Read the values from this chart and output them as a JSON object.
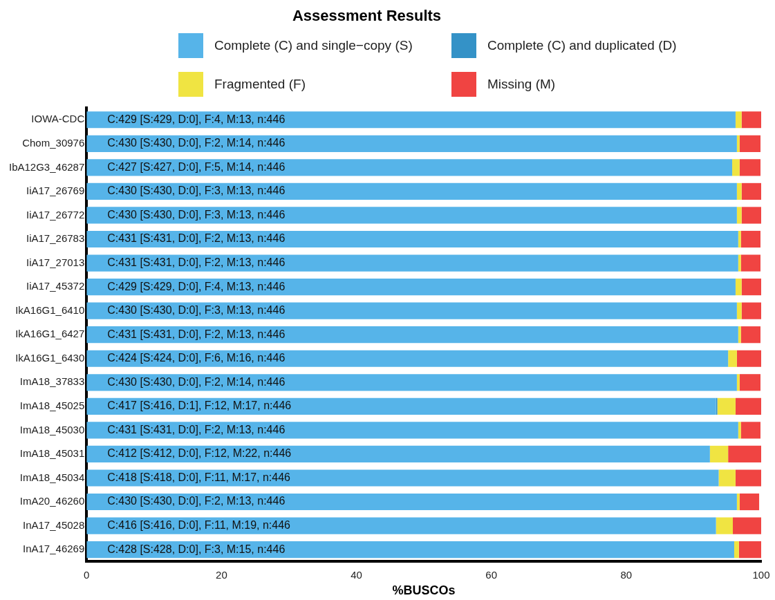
{
  "chart_data": {
    "type": "bar",
    "orientation": "horizontal",
    "stacked": true,
    "title": "Assessment Results",
    "xlabel": "%BUSCOs",
    "legend": "top",
    "grid": false,
    "categories": [
      "IOWA-CDC",
      "Chom_30976",
      "IbA12G3_46287",
      "IiA17_26769",
      "IiA17_26772",
      "IiA17_26783",
      "IiA17_27013",
      "IiA17_45372",
      "IkA16G1_6410",
      "IkA16G1_6427",
      "IkA16G1_6430",
      "ImA18_37833",
      "ImA18_45025",
      "ImA18_45030",
      "ImA18_45031",
      "ImA18_45034",
      "ImA20_46260",
      "InA17_45028",
      "InA17_46269"
    ],
    "xlim": [
      0,
      100
    ],
    "xticks": [
      0,
      20,
      40,
      60,
      80,
      100
    ],
    "series": [
      {
        "name": "Complete (C) and single−copy (S)",
        "color": "#56b4e9",
        "values": [
          96.2,
          96.4,
          95.7,
          96.4,
          96.4,
          96.6,
          96.6,
          96.2,
          96.4,
          96.6,
          95.1,
          96.4,
          93.3,
          96.6,
          92.4,
          93.7,
          96.4,
          93.3,
          96.0
        ],
        "value_labels": [
          "C:429 [S:429, D:0], F:4, M:13, n:446",
          "C:430 [S:430, D:0], F:2, M:14, n:446",
          "C:427 [S:427, D:0], F:5, M:14, n:446",
          "C:430 [S:430, D:0], F:3, M:13, n:446",
          "C:430 [S:430, D:0], F:3, M:13, n:446",
          "C:431 [S:431, D:0], F:2, M:13, n:446",
          "C:431 [S:431, D:0], F:2, M:13, n:446",
          "C:429 [S:429, D:0], F:4, M:13, n:446",
          "C:430 [S:430, D:0], F:3, M:13, n:446",
          "C:431 [S:431, D:0], F:2, M:13, n:446",
          "C:424 [S:424, D:0], F:6, M:16, n:446",
          "C:430 [S:430, D:0], F:2, M:14, n:446",
          "C:417 [S:416, D:1], F:12, M:17, n:446",
          "C:431 [S:431, D:0], F:2, M:13, n:446",
          "C:412 [S:412, D:0], F:12, M:22, n:446",
          "C:418 [S:418, D:0], F:11, M:17, n:446",
          "C:430 [S:430, D:0], F:2, M:13, n:446",
          "C:416 [S:416, D:0], F:11, M:19, n:446",
          "C:428 [S:428, D:0], F:3, M:15, n:446"
        ]
      },
      {
        "name": "Complete (C) and duplicated (D)",
        "color": "#3492c7",
        "values": [
          0,
          0,
          0,
          0,
          0,
          0,
          0,
          0,
          0,
          0,
          0,
          0,
          0.2,
          0,
          0,
          0,
          0,
          0,
          0
        ]
      },
      {
        "name": "Fragmented (F)",
        "color": "#f0e442",
        "values": [
          0.9,
          0.4,
          1.1,
          0.7,
          0.7,
          0.4,
          0.4,
          0.9,
          0.7,
          0.4,
          1.3,
          0.4,
          2.7,
          0.4,
          2.7,
          2.5,
          0.4,
          2.5,
          0.7
        ]
      },
      {
        "name": "Missing (M)",
        "color": "#f04442",
        "values": [
          2.9,
          3.1,
          3.1,
          2.9,
          2.9,
          2.9,
          2.9,
          2.9,
          2.9,
          2.9,
          3.6,
          3.1,
          3.8,
          2.9,
          4.9,
          3.8,
          2.9,
          4.3,
          3.4
        ]
      }
    ]
  }
}
